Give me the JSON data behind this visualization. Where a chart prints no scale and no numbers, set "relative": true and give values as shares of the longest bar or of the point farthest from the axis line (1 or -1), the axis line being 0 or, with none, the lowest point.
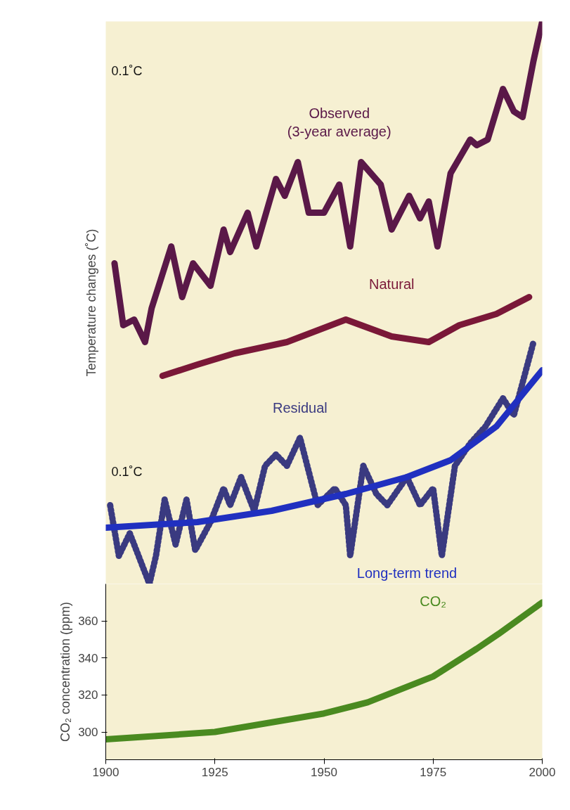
{
  "chart_data": [
    {
      "type": "line",
      "ylabel": "Temperature changes (˚C)",
      "relative": true,
      "tick_labels": false,
      "xlim": [
        1900,
        2000
      ],
      "grid": false,
      "annotations": [
        "0.1˚C",
        "0.1˚C"
      ],
      "series": [
        {
          "name": "Observed\n(3-year average)",
          "color": "#5a1848",
          "x": [
            1902,
            1904,
            1906.5,
            1909,
            1910.5,
            1915,
            1917.5,
            1920,
            1924,
            1927,
            1928.5,
            1932.5,
            1934.5,
            1939,
            1941,
            1944,
            1946.5,
            1950,
            1953.5,
            1956,
            1958.5,
            1963,
            1965.5,
            1969.5,
            1972,
            1974,
            1976,
            1979,
            1983.5,
            1985,
            1987.5,
            1991,
            1993.5,
            1995.5,
            1998,
            2000
          ],
          "values": [
            0.57,
            0.46,
            0.47,
            0.43,
            0.49,
            0.6,
            0.51,
            0.57,
            0.53,
            0.63,
            0.59,
            0.66,
            0.6,
            0.72,
            0.69,
            0.75,
            0.66,
            0.66,
            0.71,
            0.6,
            0.75,
            0.71,
            0.63,
            0.69,
            0.65,
            0.68,
            0.6,
            0.73,
            0.79,
            0.78,
            0.79,
            0.88,
            0.84,
            0.83,
            0.93,
            1.0
          ]
        },
        {
          "name": "Natural",
          "color": "#7a1838",
          "x": [
            1913,
            1921,
            1929.5,
            1941.5,
            1955,
            1965.5,
            1974,
            1981,
            1989.5,
            1997
          ],
          "values": [
            0.37,
            0.39,
            0.41,
            0.43,
            0.47,
            0.44,
            0.43,
            0.46,
            0.48,
            0.51
          ]
        },
        {
          "name": "Residual",
          "color": "#3a3a80",
          "line_style": "dotted",
          "x": [
            1901,
            1903,
            1905.5,
            1910,
            1911.5,
            1913.5,
            1916,
            1918.5,
            1920.5,
            1924,
            1927,
            1928.5,
            1931,
            1934,
            1936.5,
            1939,
            1941.5,
            1944.5,
            1948.5,
            1952.5,
            1955,
            1956,
            1959,
            1962,
            1964.5,
            1969,
            1972,
            1975,
            1977,
            1980,
            1983.5,
            1987,
            1991,
            1993.5,
            1998
          ],
          "values": [
            0.14,
            0.05,
            0.09,
            0.0,
            0.05,
            0.15,
            0.07,
            0.15,
            0.06,
            0.11,
            0.17,
            0.14,
            0.19,
            0.13,
            0.21,
            0.23,
            0.21,
            0.26,
            0.14,
            0.17,
            0.14,
            0.05,
            0.21,
            0.16,
            0.14,
            0.19,
            0.14,
            0.17,
            0.05,
            0.21,
            0.25,
            0.28,
            0.33,
            0.3,
            0.43
          ]
        },
        {
          "name": "Long-term trend",
          "color": "#2030c0",
          "x": [
            1900,
            1921,
            1938,
            1955,
            1969,
            1979,
            1989.5,
            2000
          ],
          "values": [
            0.1,
            0.11,
            0.13,
            0.16,
            0.19,
            0.22,
            0.28,
            0.38
          ]
        }
      ]
    },
    {
      "type": "line",
      "ylabel": "CO₂ concentration (ppm)",
      "xlim": [
        1900,
        2000
      ],
      "xticks": [
        1900,
        1925,
        1950,
        1975,
        2000
      ],
      "ylim": [
        285,
        380
      ],
      "yticks": [
        300,
        320,
        340,
        360
      ],
      "grid": false,
      "series": [
        {
          "name": "CO₂",
          "color": "#4a8a20",
          "x": [
            1900,
            1925,
            1950,
            1960,
            1975,
            1985,
            1990,
            2000
          ],
          "values": [
            296,
            300,
            310,
            316,
            330,
            345,
            353,
            370
          ]
        }
      ]
    }
  ]
}
